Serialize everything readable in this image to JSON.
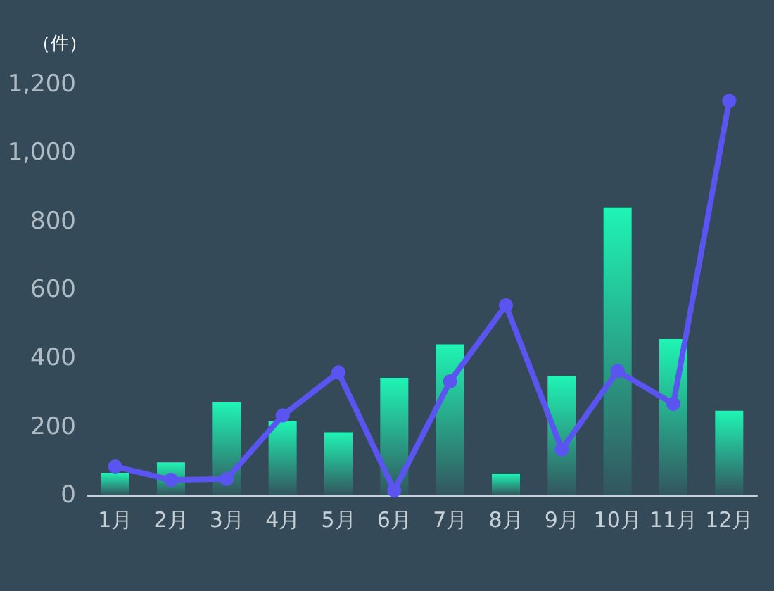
{
  "chart_data": {
    "type": "bar",
    "ylabel": "（件）",
    "categories": [
      "1月",
      "2月",
      "3月",
      "4月",
      "5月",
      "6月",
      "7月",
      "8月",
      "9月",
      "10月",
      "11月",
      "12月"
    ],
    "series": [
      {
        "color": "#1ff5b4",
        "values": [
          66,
          96,
          271,
          217,
          184,
          343,
          441,
          63,
          349,
          841,
          456,
          247
        ]
      },
      {
        "type": "line",
        "color": "#5a55f0",
        "values": [
          84,
          45,
          48,
          233,
          359,
          14,
          333,
          555,
          134,
          363,
          267,
          1152
        ]
      }
    ],
    "ylim": [
      0,
      1200
    ],
    "yticks": [
      0,
      200,
      400,
      600,
      800,
      {
        "value": 1000,
        "label": "1,000"
      },
      {
        "value": 1200,
        "label": "1,200"
      }
    ],
    "grid": false,
    "marker": "circle",
    "line_style": "solid"
  }
}
